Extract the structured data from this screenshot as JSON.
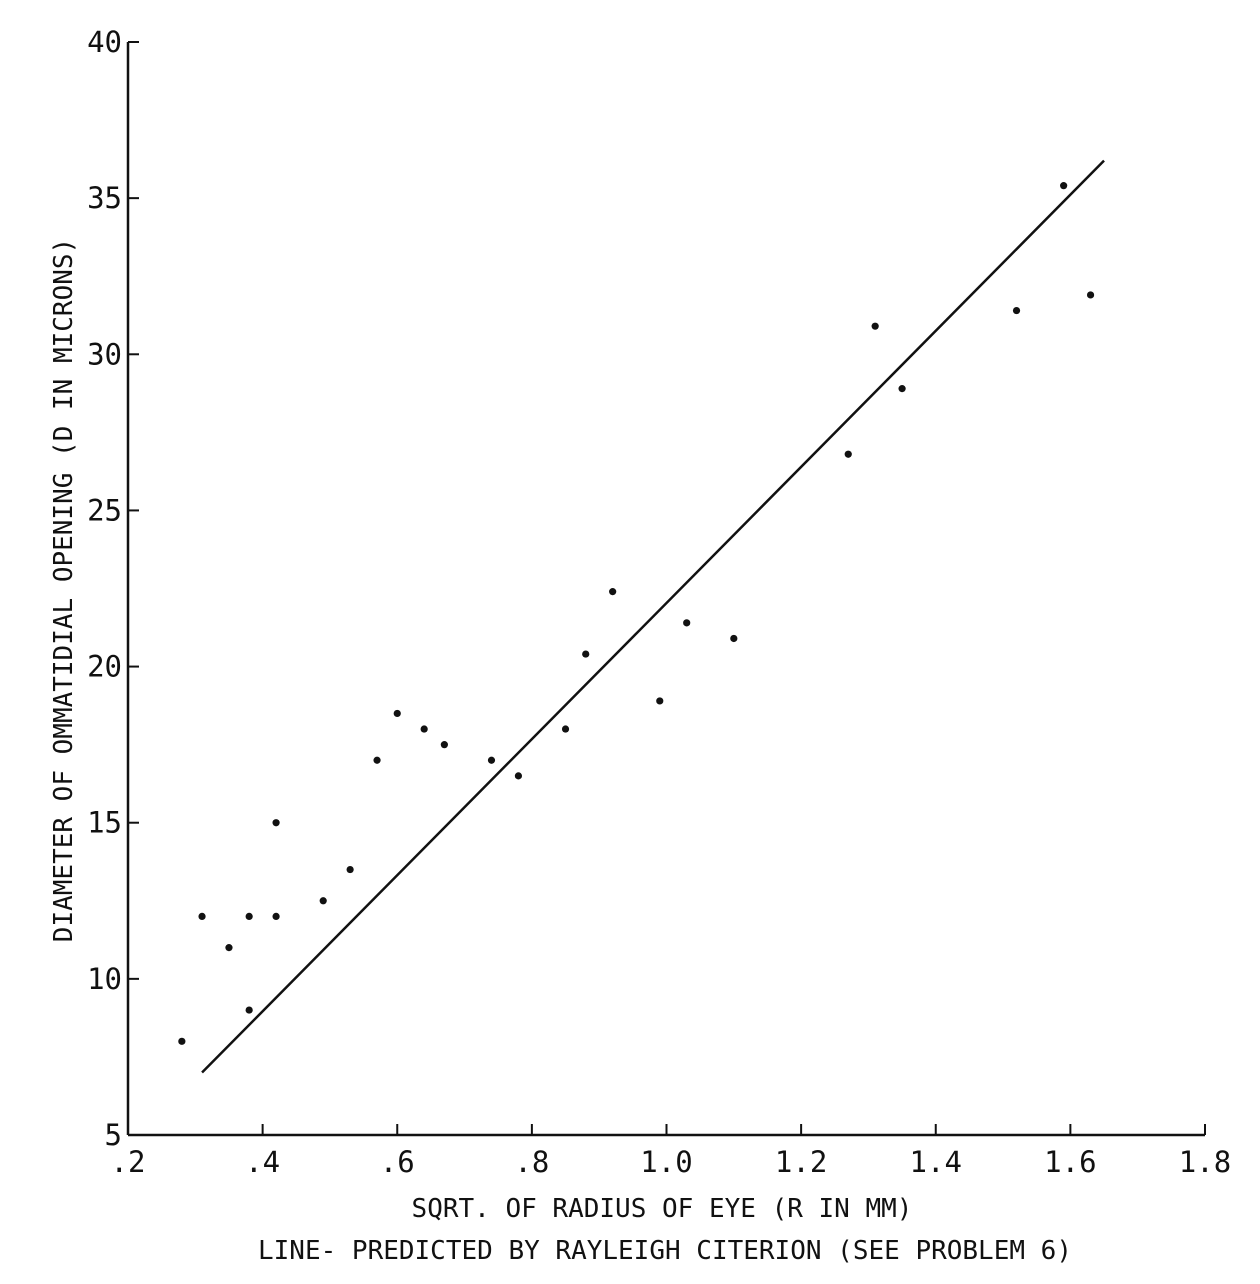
{
  "chart_data": {
    "type": "scatter",
    "xlabel": "SQRT. OF RADIUS OF EYE (R IN MM)",
    "ylabel": "DIAMETER OF OMMATIDIAL OPENING (D IN MICRONS)",
    "caption": "LINE- PREDICTED BY RAYLEIGH CITERION (SEE PROBLEM 6)",
    "xlim": [
      0.2,
      1.8
    ],
    "ylim": [
      5,
      40
    ],
    "x_ticks": [
      ".2",
      ".4",
      ".6",
      ".8",
      "1.0",
      "1.2",
      "1.4",
      "1.6",
      "1.8"
    ],
    "y_ticks": [
      "5",
      "10",
      "15",
      "20",
      "25",
      "30",
      "35",
      "40"
    ],
    "x_tick_values": [
      0.2,
      0.4,
      0.6,
      0.8,
      1.0,
      1.2,
      1.4,
      1.6,
      1.8
    ],
    "y_tick_values": [
      5,
      10,
      15,
      20,
      25,
      30,
      35,
      40
    ],
    "grid": false,
    "series": [
      {
        "points": [
          [
            0.28,
            8.0
          ],
          [
            0.31,
            12.0
          ],
          [
            0.35,
            11.0
          ],
          [
            0.38,
            12.0
          ],
          [
            0.38,
            9.0
          ],
          [
            0.42,
            15.0
          ],
          [
            0.42,
            12.0
          ],
          [
            0.49,
            12.5
          ],
          [
            0.53,
            13.5
          ],
          [
            0.57,
            17.0
          ],
          [
            0.6,
            18.5
          ],
          [
            0.64,
            18.0
          ],
          [
            0.67,
            17.5
          ],
          [
            0.74,
            17.0
          ],
          [
            0.78,
            16.5
          ],
          [
            0.85,
            18.0
          ],
          [
            0.88,
            20.4
          ],
          [
            0.92,
            22.4
          ],
          [
            0.99,
            18.9
          ],
          [
            1.03,
            21.4
          ],
          [
            1.1,
            20.9
          ],
          [
            1.27,
            26.8
          ],
          [
            1.31,
            30.9
          ],
          [
            1.35,
            28.9
          ],
          [
            1.52,
            31.4
          ],
          [
            1.59,
            35.4
          ],
          [
            1.63,
            31.9
          ]
        ]
      }
    ],
    "fit_line": {
      "x": [
        0.31,
        1.65
      ],
      "y": [
        7.0,
        36.2
      ]
    },
    "colors": {
      "ink": "#111111",
      "background": "#ffffff"
    }
  }
}
